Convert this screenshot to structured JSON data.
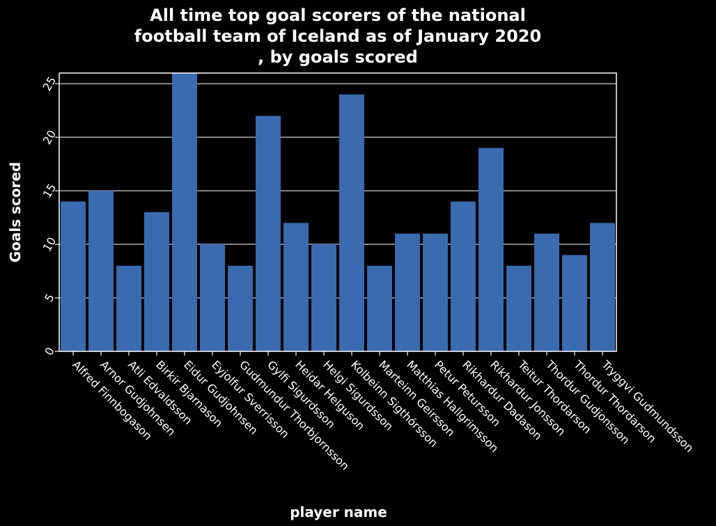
{
  "chart_data": {
    "type": "bar",
    "title_lines": [
      "All time top goal scorers of the national",
      "football team of Iceland as of January 2020",
      ", by goals scored"
    ],
    "xlabel": "player name",
    "ylabel": "Goals scored",
    "ylim": [
      0,
      26
    ],
    "yticks": [
      0,
      5,
      10,
      15,
      20,
      25
    ],
    "grid": "horizontal",
    "bar_color": "#3a6bb0",
    "background": "#000000",
    "categories": [
      "Alfred Finnbogason",
      "Arnor Gudjohnsen",
      "Atli Edvaldsson",
      "Birkir Bjarnason",
      "Eidur Gudjohnsen",
      "Eyjolfur Sverrisson",
      "Gudmundur Thorbjornsson",
      "Gylfi Sigurdsson",
      "Heidar Helguson",
      "Helgi Sigurdsson",
      "Kolbeinn Sigthórsson",
      "Marteinn Geirsson",
      "Matthias Hallgrimsson",
      "Petur Petursson",
      "Rikhardur Dadason",
      "Rikhardur Jonsson",
      "Teitur Thordarson",
      "Thordur Gudjonsson",
      "Thordur Thordarson",
      "Tryggvi Gudmundsson"
    ],
    "values": [
      14,
      15,
      8,
      13,
      26,
      10,
      8,
      22,
      12,
      10,
      24,
      8,
      11,
      11,
      14,
      19,
      8,
      11,
      9,
      12
    ]
  }
}
